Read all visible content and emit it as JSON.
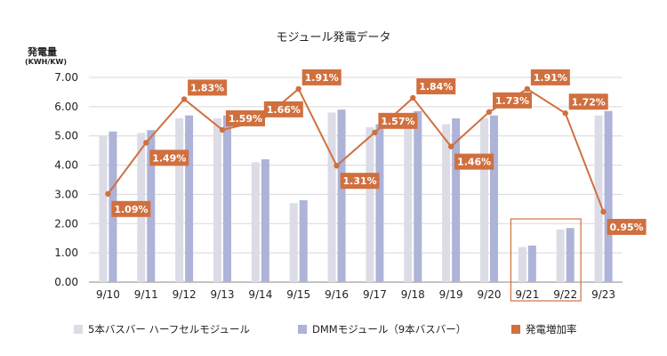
{
  "chart_data": {
    "type": "bar",
    "title": "モジュール発電データ",
    "ylabel": "発電量",
    "ylabel_unit": "(KWH/KW)",
    "ylim": [
      0,
      7
    ],
    "yticks": [
      "0.00",
      "1.00",
      "2.00",
      "3.00",
      "4.00",
      "5.00",
      "6.00",
      "7.00"
    ],
    "grid": true,
    "legend_position": "bottom",
    "categories": [
      "9/10",
      "9/11",
      "9/12",
      "9/13",
      "9/14",
      "9/15",
      "9/16",
      "9/17",
      "9/18",
      "9/19",
      "9/20",
      "9/21",
      "9/22",
      "9/23"
    ],
    "series": [
      {
        "name": "5本バスバー ハーフセルモジュール",
        "type": "bar",
        "color": "#dcdce6",
        "values": [
          5.0,
          5.1,
          5.6,
          5.6,
          4.1,
          2.7,
          5.8,
          5.3,
          5.7,
          5.4,
          5.6,
          1.2,
          1.8,
          5.7
        ]
      },
      {
        "name": "DMMモジュール（9本バスバー）",
        "type": "bar",
        "color": "#aeb3d8",
        "values": [
          5.15,
          5.2,
          5.7,
          5.7,
          4.2,
          2.8,
          5.9,
          5.4,
          5.85,
          5.6,
          5.7,
          1.25,
          1.85,
          5.85
        ]
      },
      {
        "name": "発電増加率",
        "type": "line",
        "color": "#d0703f",
        "values": [
          1.09,
          1.49,
          1.83,
          1.59,
          1.66,
          1.91,
          1.31,
          1.57,
          1.84,
          1.46,
          1.73,
          1.91,
          1.72,
          0.95
        ],
        "labels": [
          "1.09%",
          "1.49%",
          "1.83%",
          "1.59%",
          "1.66%",
          "1.91%",
          "1.31%",
          "1.57%",
          "1.84%",
          "1.46%",
          "1.73%",
          "1.91%",
          "1.72%",
          "0.95%"
        ]
      }
    ],
    "highlight_categories": [
      "9/21",
      "9/22"
    ]
  }
}
